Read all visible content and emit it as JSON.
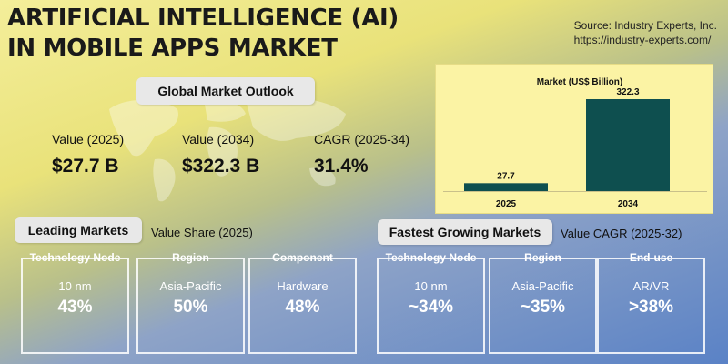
{
  "header": {
    "title_line1": "ARTIFICIAL INTELLIGENCE (AI)",
    "title_line2": "IN MOBILE APPS MARKET",
    "source_line1": "Source: Industry Experts, Inc.",
    "source_line2": "https://industry-experts.com/"
  },
  "outlook": {
    "label": "Global Market Outlook",
    "kpis": [
      {
        "label": "Value (2025)",
        "value": "$27.7 B"
      },
      {
        "label": "Value (2034)",
        "value": "$322.3 B"
      },
      {
        "label": "CAGR (2025-34)",
        "value": "31.4%"
      }
    ]
  },
  "chart_data": {
    "type": "bar",
    "title": "Market (US$ Billion)",
    "categories": [
      "2025",
      "2034"
    ],
    "values": [
      27.7,
      322.3
    ],
    "value_labels": [
      "27.7",
      "322.3"
    ],
    "xlabel": "",
    "ylabel": "",
    "ylim": [
      0,
      322.3
    ],
    "bar_color": "#0e4f4f"
  },
  "leading": {
    "label": "Leading Markets",
    "subtitle": "Value Share (2025)",
    "cards": [
      {
        "heading": "Technology Node",
        "item": "10 nm",
        "value": "43%"
      },
      {
        "heading": "Region",
        "item": "Asia-Pacific",
        "value": "50%"
      },
      {
        "heading": "Component",
        "item": "Hardware",
        "value": "48%"
      }
    ]
  },
  "fastest": {
    "label": "Fastest Growing Markets",
    "subtitle": "Value CAGR (2025-32)",
    "cards": [
      {
        "heading": "Technology Node",
        "item": "10 nm",
        "value": "~34%"
      },
      {
        "heading": "Region",
        "item": "Asia-Pacific",
        "value": "~35%"
      },
      {
        "heading": "End-use",
        "item": "AR/VR",
        "value": ">38%"
      }
    ]
  }
}
